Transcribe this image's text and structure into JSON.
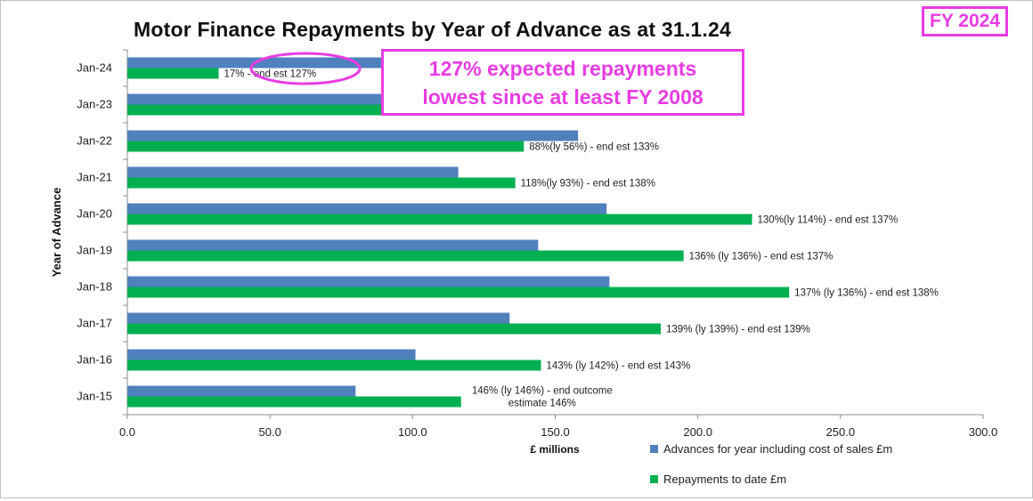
{
  "badge": "FY 2024",
  "callout": {
    "line1": "127% expected repayments",
    "line2": "lowest since at least FY 2008"
  },
  "colors": {
    "advances": "#4f81bd",
    "repayments": "#00b050",
    "highlight": "#e83de3"
  },
  "chart_data": {
    "type": "bar",
    "orientation": "horizontal",
    "title": "Motor Finance Repayments by Year of Advance as at 31.1.24",
    "xlabel": "£ millions",
    "ylabel": "Year of Advance",
    "xlim": [
      0,
      300
    ],
    "xticks": [
      "0.0",
      "50.0",
      "100.0",
      "150.0",
      "200.0",
      "250.0",
      "300.0"
    ],
    "categories": [
      "Jan-24",
      "Jan-23",
      "Jan-22",
      "Jan-21",
      "Jan-20",
      "Jan-19",
      "Jan-18",
      "Jan-17",
      "Jan-16",
      "Jan-15"
    ],
    "series": [
      {
        "name": "Advances for year including cost of sales £m",
        "values": [
          190,
          165,
          158,
          116,
          168,
          144,
          169,
          134,
          101,
          80
        ]
      },
      {
        "name": "Repayments to date £m",
        "values": [
          32,
          100,
          139,
          136,
          219,
          195,
          232,
          187,
          145,
          117
        ]
      }
    ],
    "annotations": [
      "17% - end est 127%",
      "",
      "88%(ly 56%) - end est 133%",
      "118%(ly  93%) - end est 138%",
      "130%(ly  114%) - end est 137%",
      "136% (ly 136%) - end est 137%",
      "137% (ly 136%) - end est 138%",
      "139% (ly 139%) - end est 139%",
      "143% (ly 142%) - end est 143%",
      "146% (ly 146%) - end outcome estimate 146%"
    ],
    "grid": false,
    "legend_position": "bottom-right"
  }
}
